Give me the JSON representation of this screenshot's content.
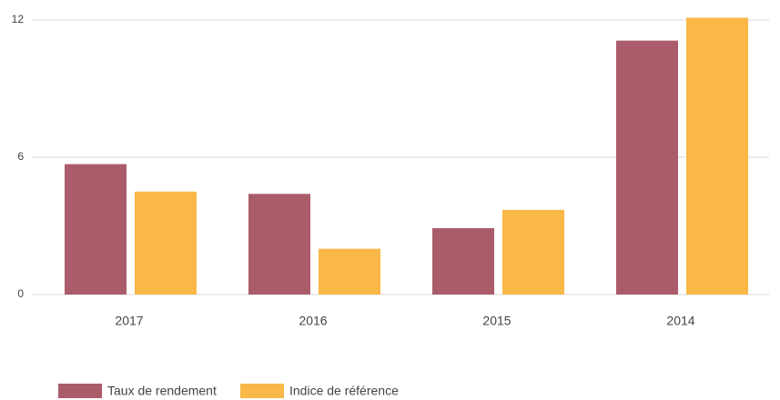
{
  "chart_data": {
    "type": "bar",
    "categories": [
      "2017",
      "2016",
      "2015",
      "2014"
    ],
    "series": [
      {
        "name": "Taux de rendement",
        "color": "#ab5c6b",
        "values": [
          5.7,
          4.4,
          2.9,
          11.1
        ]
      },
      {
        "name": "Indice de référence",
        "color": "#f9b847",
        "values": [
          4.5,
          2.0,
          3.7,
          12.1
        ]
      }
    ],
    "ylim": [
      0,
      12
    ],
    "yticks": [
      0,
      6,
      12
    ],
    "grid": true,
    "legend": "bottom"
  }
}
